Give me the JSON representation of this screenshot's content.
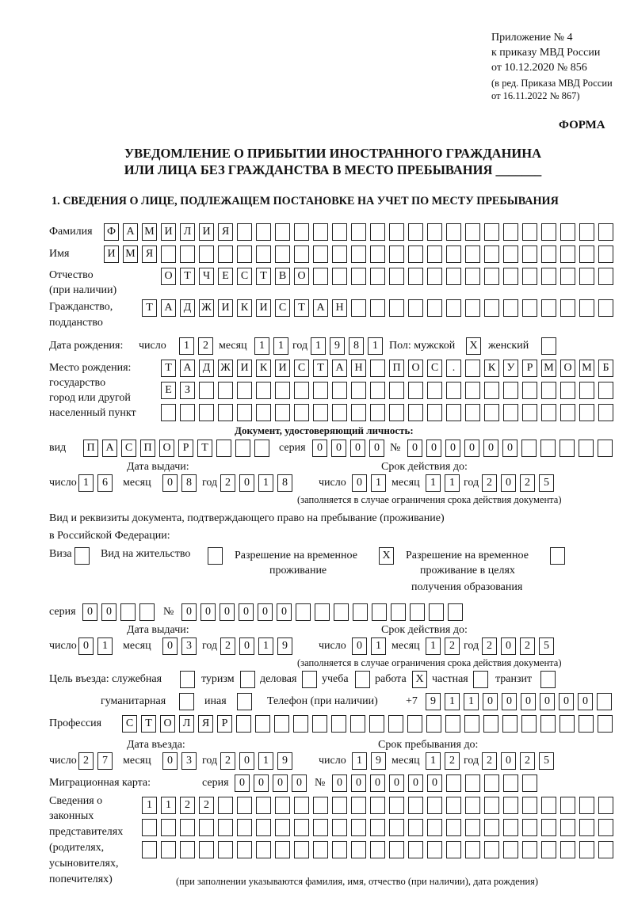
{
  "header": {
    "appendix": "Приложение № 4",
    "order": "к приказу МВД России",
    "order_date": "от 10.12.2020 № 856",
    "edition1": "(в ред. Приказа МВД России",
    "edition2": "от 16.11.2022 № 867)",
    "form_label": "ФОРМА",
    "title1": "УВЕДОМЛЕНИЕ О ПРИБЫТИИ ИНОСТРАННОГО ГРАЖДАНИНА",
    "title2": "ИЛИ ЛИЦА БЕЗ ГРАЖДАНСТВА В МЕСТО ПРЕБЫВАНИЯ _______",
    "section1": "1. СВЕДЕНИЯ О ЛИЦЕ, ПОДЛЕЖАЩЕМ ПОСТАНОВКЕ НА УЧЕТ ПО МЕСТУ ПРЕБЫВАНИЯ"
  },
  "labels": {
    "surname": "Фамилия",
    "name": "Имя",
    "patronymic1": "Отчество",
    "patronymic2": "(при наличии)",
    "citizenship1": "Гражданство,",
    "citizenship2": "подданство",
    "birth_date": "Дата рождения:",
    "day": "число",
    "month": "месяц",
    "year": "год",
    "sex_male": "Пол: мужской",
    "sex_female": "женский",
    "birth_place1": "Место рождения:",
    "birth_place2": "государство",
    "birth_place3": "город или другой",
    "birth_place4": "населенный пункт",
    "id_doc": "Документ, удостоверяющий личность:",
    "kind": "вид",
    "series": "серия",
    "number": "№",
    "issue_date": "Дата выдачи:",
    "valid_until": "Срок действия до:",
    "valid_note": "(заполняется в случае ограничения срока действия документа)",
    "right_doc1": "Вид и реквизиты документа, подтверждающего право на пребывание (проживание)",
    "right_doc2": "в Российской Федерации:",
    "visa": "Виза",
    "residence": "Вид на жительство",
    "temp_res1": "Разрешение на временное",
    "temp_res2": "проживание",
    "temp_edu1": "Разрешение на временное",
    "temp_edu2": "проживание в целях",
    "temp_edu3": "получения образования",
    "purpose": "Цель въезда: служебная",
    "tourism": "туризм",
    "business": "деловая",
    "study": "учеба",
    "work": "работа",
    "private": "частная",
    "transit": "транзит",
    "humanitarian": "гуманитарная",
    "other": "иная",
    "phone": "Телефон (при наличии)",
    "phone_prefix": "+7",
    "profession": "Профессия",
    "entry_date": "Дата въезда:",
    "stay_until": "Срок пребывания до:",
    "migration_card": "Миграционная карта:",
    "reps1": "Сведения о",
    "reps2": "законных",
    "reps3": "представителях",
    "reps4": "(родителях,",
    "reps5": "усыновителях,",
    "reps6": "попечителях)",
    "reps_note": "(при заполнении указываются фамилия, имя, отчество (при наличии), дата рождения)"
  },
  "values": {
    "surname": "ФАМИЛИЯ",
    "name": "ИМЯ",
    "patronymic": "ОТЧЕСТВО",
    "citizenship": "ТАДЖИКИСТАН",
    "birth": {
      "day": "12",
      "month": "11",
      "year": "1981"
    },
    "sex": {
      "male": "X",
      "female": ""
    },
    "birth_place": [
      "ТАДЖИКИСТАН ПОС. КУРМОМБ",
      "ЕЗ",
      ""
    ],
    "id_doc": {
      "kind": "ПАСПОРТ",
      "series": "0000",
      "number": "000000",
      "issue": {
        "day": "16",
        "month": "08",
        "year": "2018"
      },
      "valid": {
        "day": "01",
        "month": "11",
        "year": "2025"
      }
    },
    "right_doc": {
      "visa": "",
      "residence": "",
      "temp_res": "X",
      "temp_edu": "",
      "series": "00",
      "number": "000000",
      "issue": {
        "day": "01",
        "month": "03",
        "year": "2019"
      },
      "valid": {
        "day": "01",
        "month": "12",
        "year": "2025"
      }
    },
    "purpose": {
      "service": "",
      "tourism": "",
      "business": "",
      "study": "",
      "work": "X",
      "private": "",
      "transit": "",
      "humanitarian": "",
      "other": ""
    },
    "phone": "911000000",
    "profession": "СТОЛЯР",
    "entry": {
      "day": "27",
      "month": "03",
      "year": "2019"
    },
    "stay_until": {
      "day": "19",
      "month": "12",
      "year": "2025"
    },
    "migration_card": {
      "series": "0000",
      "number": "000000"
    },
    "reps": [
      "1122",
      "",
      ""
    ]
  }
}
